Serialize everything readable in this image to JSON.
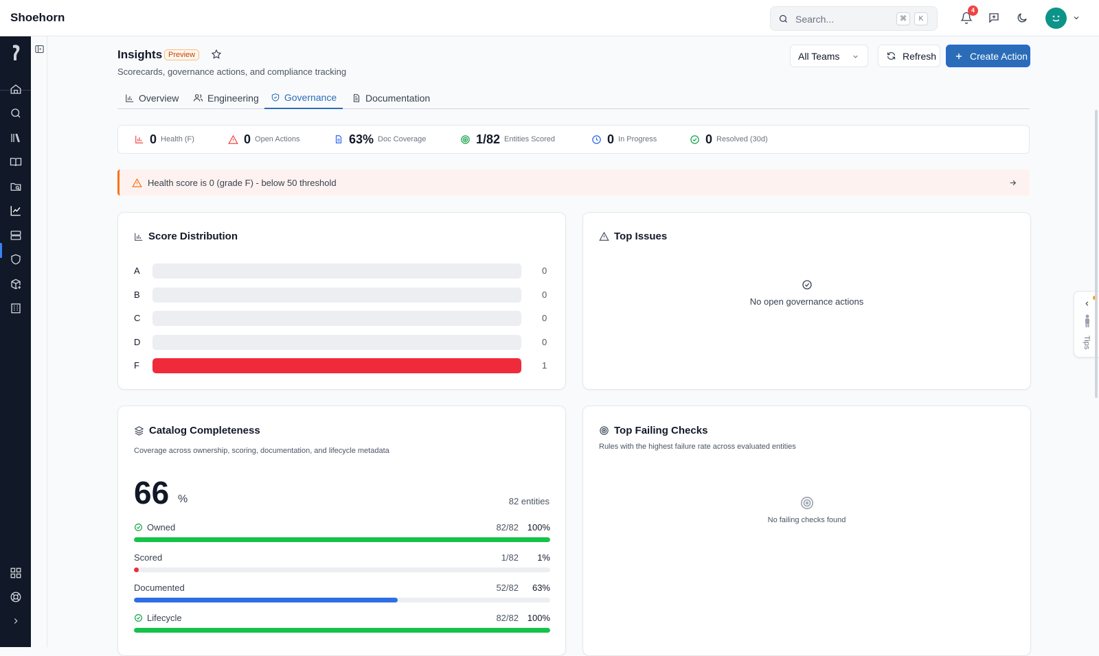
{
  "app": {
    "title": "Shoehorn"
  },
  "search": {
    "placeholder": "Search...",
    "kbd_mod": "⌘",
    "kbd_key": "K"
  },
  "notifications": {
    "count": "4"
  },
  "header": {
    "title": "Insights",
    "badge": "Preview",
    "subtitle": "Scorecards, governance actions, and compliance tracking",
    "team_select": "All Teams",
    "refresh_label": "Refresh",
    "create_label": "Create Action"
  },
  "tabs": [
    {
      "label": "Overview",
      "icon": "bar-chart-icon"
    },
    {
      "label": "Engineering",
      "icon": "users-icon"
    },
    {
      "label": "Governance",
      "icon": "shield-check-icon",
      "active": true
    },
    {
      "label": "Documentation",
      "icon": "file-text-icon"
    }
  ],
  "stats": [
    {
      "value": "0",
      "label": "Health (F)",
      "icon": "bar-chart-icon",
      "color": "#ef4444"
    },
    {
      "value": "0",
      "label": "Open Actions",
      "icon": "alert-triangle-icon",
      "color": "#ef4444"
    },
    {
      "value": "63%",
      "label": "Doc Coverage",
      "icon": "file-text-icon",
      "color": "#2563eb"
    },
    {
      "value": "1/82",
      "label": "Entities Scored",
      "icon": "target-icon",
      "color": "#16a34a"
    },
    {
      "value": "0",
      "label": "In Progress",
      "icon": "clock-icon",
      "color": "#2563eb"
    },
    {
      "value": "0",
      "label": "Resolved (30d)",
      "icon": "check-circle-icon",
      "color": "#16a34a"
    }
  ],
  "alert": {
    "text": "Health score is 0 (grade F) - below 50 threshold"
  },
  "score_distribution": {
    "title": "Score Distribution",
    "rows": [
      {
        "grade": "A",
        "count": "0",
        "fraction": 0
      },
      {
        "grade": "B",
        "count": "0",
        "fraction": 0
      },
      {
        "grade": "C",
        "count": "0",
        "fraction": 0
      },
      {
        "grade": "D",
        "count": "0",
        "fraction": 0
      },
      {
        "grade": "F",
        "count": "1",
        "fraction": 1
      }
    ],
    "fill_color": "#ef2b3b"
  },
  "top_issues": {
    "title": "Top Issues",
    "empty_text": "No open governance actions"
  },
  "catalog": {
    "title": "Catalog Completeness",
    "subtitle": "Coverage across ownership, scoring, documentation, and lifecycle metadata",
    "value": "66",
    "unit": "%",
    "entities": "82 entities",
    "metrics": [
      {
        "label": "Owned",
        "count": "82/82",
        "percent": "100%",
        "fraction": 1.0,
        "color": "#16c24a",
        "check": true
      },
      {
        "label": "Scored",
        "count": "1/82",
        "percent": "1%",
        "fraction": 0.012,
        "color": "#ef2b3b",
        "check": false
      },
      {
        "label": "Documented",
        "count": "52/82",
        "percent": "63%",
        "fraction": 0.634,
        "color": "#2f6fe4",
        "check": false
      },
      {
        "label": "Lifecycle",
        "count": "82/82",
        "percent": "100%",
        "fraction": 1.0,
        "color": "#16c24a",
        "check": true
      }
    ]
  },
  "failing_checks": {
    "title": "Top Failing Checks",
    "subtitle": "Rules with the highest failure rate across evaluated entities",
    "empty_text": "No failing checks found"
  },
  "tips": {
    "label": "Tips"
  }
}
